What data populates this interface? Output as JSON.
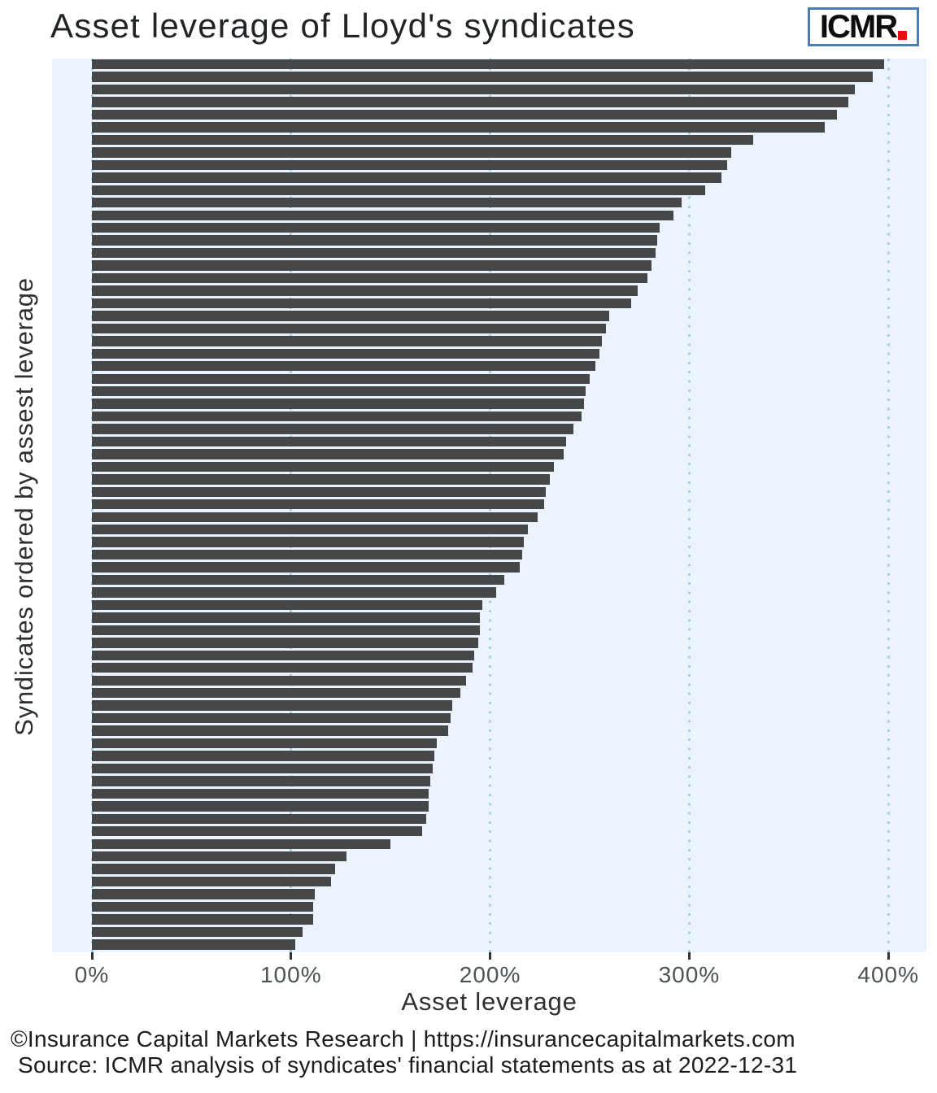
{
  "header": {
    "title": "Asset leverage of Lloyd's syndicates",
    "logo_text": "ICMR"
  },
  "chart_data": {
    "type": "bar",
    "orientation": "horizontal",
    "title": "Asset leverage of Lloyd's syndicates",
    "xlabel": "Asset leverage",
    "ylabel": "Syndicates ordered by assest leverage",
    "unit": "%",
    "xlim": [
      0,
      419
    ],
    "grid": "dotted-vertical",
    "x_ticks": [
      {
        "value": 0,
        "label": "0%"
      },
      {
        "value": 100,
        "label": "100%"
      },
      {
        "value": 200,
        "label": "200%"
      },
      {
        "value": 300,
        "label": "300%"
      },
      {
        "value": 400,
        "label": "400%"
      }
    ],
    "series_note": "71 syndicates sorted descending by asset leverage, values in percent",
    "values": [
      398,
      392,
      383,
      380,
      374,
      368,
      332,
      321,
      319,
      316,
      308,
      296,
      292,
      285,
      284,
      283,
      281,
      279,
      274,
      271,
      260,
      258,
      256,
      255,
      253,
      250,
      248,
      247,
      246,
      242,
      238,
      237,
      232,
      230,
      228,
      227,
      224,
      219,
      217,
      216,
      215,
      207,
      203,
      196,
      195,
      195,
      194,
      192,
      191,
      188,
      185,
      181,
      180,
      179,
      173,
      172,
      171,
      170,
      169,
      169,
      168,
      166,
      150,
      128,
      122,
      120,
      112,
      111,
      111,
      106,
      102
    ]
  },
  "footer": {
    "line1": "©Insurance Capital Markets Research | https://insurancecapitalmarkets.com",
    "line2": "Source: ICMR analysis of syndicates' financial statements as at 2022-12-31"
  },
  "colors": {
    "bar": "#454749",
    "plot_bg": "#ebf4fd",
    "grid_dot": "#a9cee2",
    "title_text": "#212426",
    "tick_label": "#4b5154",
    "tick_mark": "#2f3437",
    "axis_text": "#2c2f31",
    "footer_text": "#1a1c1d",
    "logo_border": "#4c7cb8",
    "logo_dot_red": "#e3120b"
  }
}
